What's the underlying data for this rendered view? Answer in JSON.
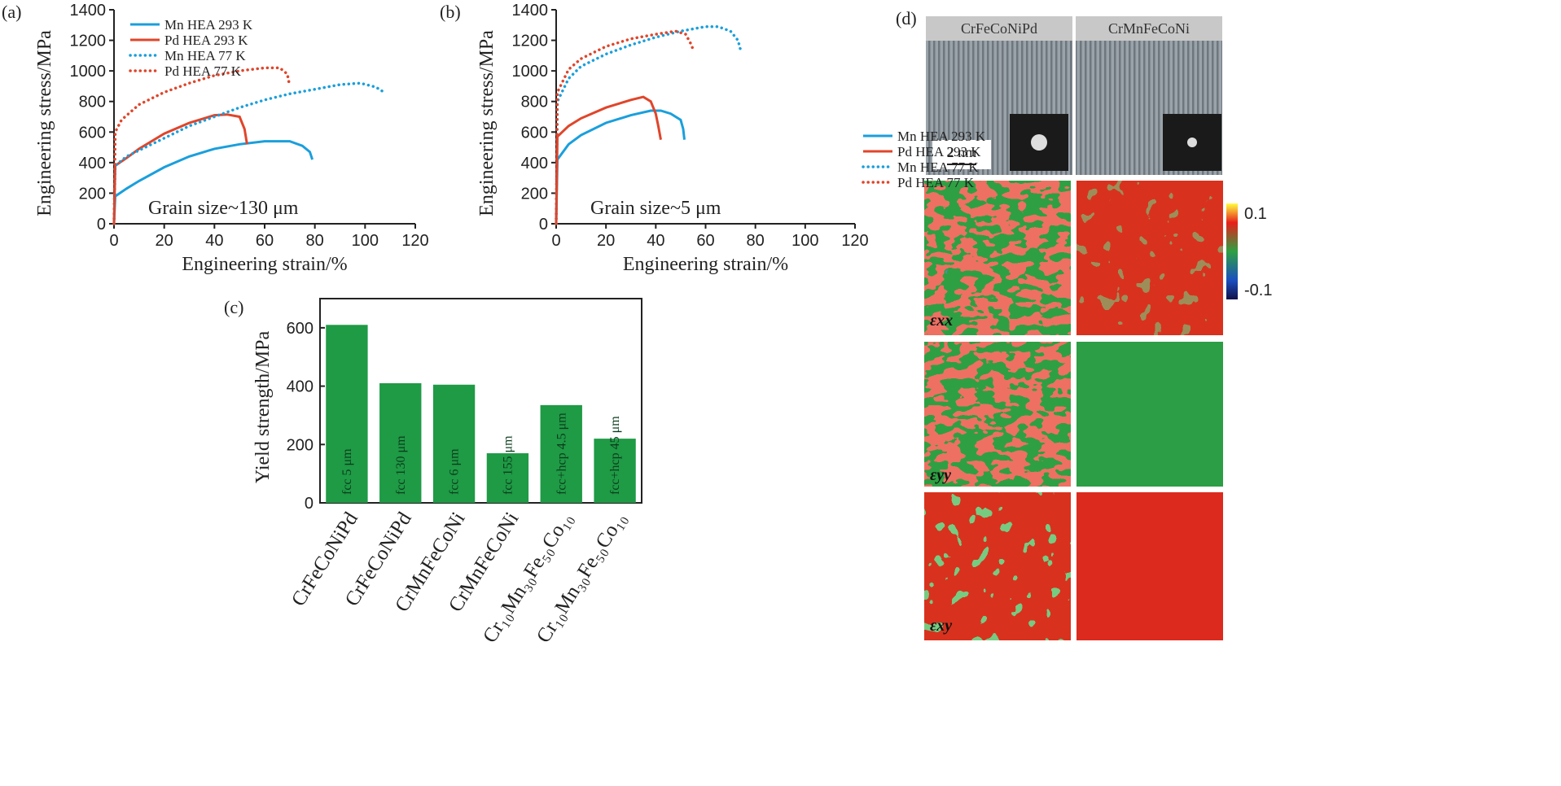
{
  "chart_data": [
    {
      "type": "line",
      "label": "(a)",
      "xlabel": "Engineering strain/%",
      "ylabel": "Engineering stress/MPa",
      "annotation": "Grain size~130 μm",
      "legend": "upper left",
      "xlim": [
        0,
        120
      ],
      "xticks": [
        0,
        20,
        40,
        60,
        80,
        100,
        120
      ],
      "ylim": [
        0,
        1400
      ],
      "yticks": [
        0,
        200,
        400,
        600,
        800,
        1000,
        1200,
        1400
      ],
      "series": [
        {
          "name": "Mn HEA 293 K",
          "color": "#1a9fdc",
          "style": "solid",
          "x": [
            0,
            0.5,
            5,
            10,
            20,
            30,
            40,
            50,
            60,
            70,
            75,
            78,
            79
          ],
          "values": [
            0,
            180,
            230,
            280,
            370,
            440,
            490,
            520,
            540,
            540,
            510,
            470,
            420
          ]
        },
        {
          "name": "Pd HEA 293 K",
          "color": "#e0452a",
          "style": "solid",
          "x": [
            0,
            0.5,
            5,
            10,
            20,
            30,
            40,
            45,
            50,
            52,
            53
          ],
          "values": [
            0,
            380,
            430,
            490,
            590,
            660,
            710,
            715,
            700,
            620,
            520
          ]
        },
        {
          "name": "Mn HEA 77 K",
          "color": "#1a9fdc",
          "style": "dotted",
          "x": [
            0,
            0.5,
            5,
            10,
            20,
            30,
            40,
            50,
            60,
            70,
            80,
            90,
            98,
            103,
            106,
            108
          ],
          "values": [
            0,
            380,
            440,
            480,
            560,
            640,
            700,
            760,
            810,
            850,
            880,
            910,
            920,
            900,
            880,
            850
          ]
        },
        {
          "name": "Pd HEA 77 K",
          "color": "#e0452a",
          "style": "dotted",
          "x": [
            0,
            0.5,
            3,
            10,
            20,
            30,
            40,
            50,
            60,
            66,
            69,
            70
          ],
          "values": [
            0,
            600,
            680,
            780,
            860,
            920,
            970,
            1000,
            1020,
            1020,
            980,
            900
          ]
        }
      ]
    },
    {
      "type": "line",
      "label": "(b)",
      "xlabel": "Engineering strain/%",
      "ylabel": "Engineering stress/MPa",
      "annotation": "Grain size~5 μm",
      "legend": "center right",
      "xlim": [
        0,
        120
      ],
      "xticks": [
        0,
        20,
        40,
        60,
        80,
        100,
        120
      ],
      "ylim": [
        0,
        1400
      ],
      "yticks": [
        0,
        200,
        400,
        600,
        800,
        1000,
        1200,
        1400
      ],
      "series": [
        {
          "name": "Mn HEA 293 K",
          "color": "#1a9fdc",
          "style": "solid",
          "x": [
            0,
            0.5,
            5,
            10,
            20,
            30,
            38,
            42,
            46,
            50,
            51,
            51.5
          ],
          "values": [
            0,
            420,
            520,
            580,
            660,
            710,
            740,
            740,
            720,
            680,
            620,
            550
          ]
        },
        {
          "name": "Pd HEA 293 K",
          "color": "#e0452a",
          "style": "solid",
          "x": [
            0,
            0.5,
            5,
            10,
            20,
            30,
            35,
            38,
            40,
            41,
            42
          ],
          "values": [
            0,
            570,
            640,
            690,
            760,
            810,
            830,
            800,
            720,
            640,
            550
          ]
        },
        {
          "name": "Mn HEA 77 K",
          "color": "#1a9fdc",
          "style": "dotted",
          "x": [
            0,
            0.5,
            5,
            10,
            20,
            30,
            40,
            50,
            60,
            65,
            70,
            73,
            74
          ],
          "values": [
            0,
            800,
            950,
            1030,
            1110,
            1170,
            1220,
            1260,
            1290,
            1290,
            1260,
            1200,
            1140
          ]
        },
        {
          "name": "Pd HEA 77 K",
          "color": "#e0452a",
          "style": "dotted",
          "x": [
            0,
            0.5,
            5,
            10,
            20,
            30,
            40,
            48,
            52,
            54,
            55
          ],
          "values": [
            0,
            860,
            1010,
            1080,
            1160,
            1210,
            1240,
            1260,
            1240,
            1180,
            1140
          ]
        }
      ]
    },
    {
      "type": "bar",
      "label": "(c)",
      "ylabel": "Yield strength/MPa",
      "color": "#1f9a45",
      "ylim": [
        0,
        700
      ],
      "yticks": [
        0,
        200,
        400,
        600
      ],
      "categories": [
        "CrFeCoNiPd",
        "CrFeCoNiPd",
        "CrMnFeCoNi",
        "CrMnFeCoNi",
        "Cr₁₀Mn₃₀Fe₅₀Co₁₀",
        "Cr₁₀Mn₃₀Fe₅₀Co₁₀"
      ],
      "values": [
        610,
        410,
        405,
        170,
        335,
        220
      ],
      "bar_labels": [
        "fcc 5 μm",
        "fcc 130 μm",
        "fcc 6 μm",
        "fcc 155 μm",
        "fcc+hcp 4.5 μm",
        "fcc+hcp 45 μm"
      ]
    }
  ],
  "panel_d": {
    "label": "(d)",
    "columns": [
      "CrFeCoNiPd",
      "CrMnFeCoNi"
    ],
    "scale_bar": "2 nm",
    "colorbar_ticks": [
      0.1,
      -0.1
    ],
    "row_labels": [
      "εxx",
      "εyy",
      "εxy"
    ]
  }
}
